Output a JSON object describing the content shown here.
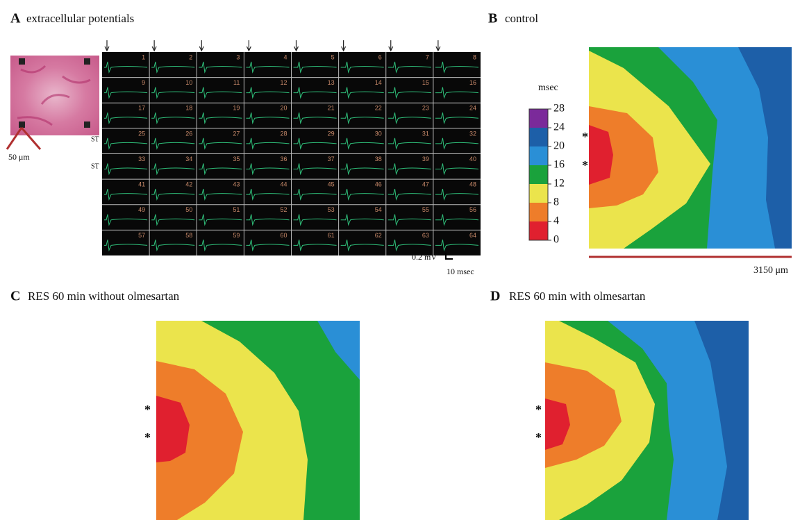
{
  "panels": [
    {
      "letter": "A",
      "title": "extracellular potentials"
    },
    {
      "letter": "B",
      "title": "control"
    },
    {
      "letter": "C",
      "title": "RES 60 min without olmesartan"
    },
    {
      "letter": "D",
      "title": "RES 60 min with olmesartan"
    }
  ],
  "electrodes": [
    1,
    2,
    3,
    4,
    5,
    6,
    7,
    8,
    9,
    10,
    11,
    12,
    13,
    14,
    15,
    16,
    17,
    18,
    19,
    20,
    21,
    22,
    23,
    24,
    25,
    26,
    27,
    28,
    29,
    30,
    31,
    32,
    33,
    34,
    35,
    36,
    37,
    38,
    39,
    40,
    41,
    42,
    43,
    44,
    45,
    46,
    47,
    48,
    49,
    50,
    51,
    52,
    53,
    54,
    55,
    56,
    57,
    58,
    59,
    60,
    61,
    62,
    63,
    64
  ],
  "stim_label": "ST",
  "voltage_scale": "0.2 mV",
  "time_scale": "10 msec",
  "tissue_scale": "50 μm",
  "colorbar": {
    "unit": "msec",
    "ticks": [
      28,
      24,
      20,
      16,
      12,
      8,
      4,
      0
    ],
    "colors": [
      "#7b2a9a",
      "#1d5fa8",
      "#2a8fd6",
      "#1aa23c",
      "#ebe44c",
      "#ee7d2a",
      "#e0202f"
    ]
  },
  "map_scale": "3150 μm",
  "stim_marker": "*"
}
